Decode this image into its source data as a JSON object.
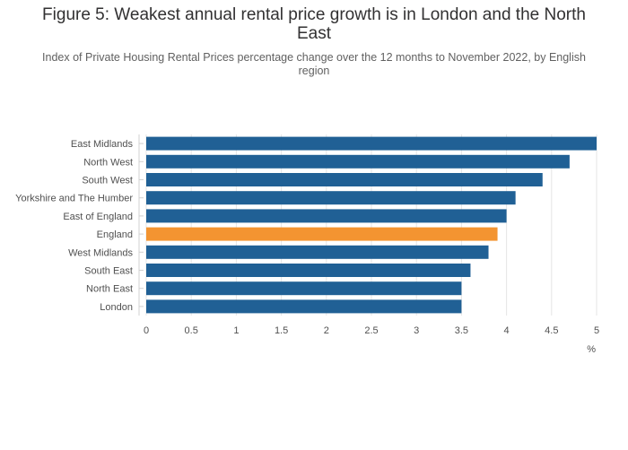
{
  "title": "Figure 5: Weakest annual rental price growth is in London and the North East",
  "subtitle": "Index of Private Housing Rental Prices percentage change over the 12 months to November 2022, by English region",
  "chart_data": {
    "type": "bar",
    "orientation": "horizontal",
    "categories": [
      "East Midlands",
      "North West",
      "South West",
      "Yorkshire and The Humber",
      "East of England",
      "England",
      "West Midlands",
      "South East",
      "North East",
      "London"
    ],
    "values": [
      5.0,
      4.7,
      4.4,
      4.1,
      4.0,
      3.9,
      3.8,
      3.6,
      3.5,
      3.5
    ],
    "highlight": "England",
    "colors": {
      "default": "#206095",
      "highlight": "#F39431"
    },
    "xlim": [
      0,
      5
    ],
    "xticks": [
      "0",
      "0.5",
      "1",
      "1.5",
      "2",
      "2.5",
      "3",
      "3.5",
      "4",
      "4.5",
      "5"
    ],
    "xlabel": "%",
    "ylabel": "",
    "grid": true
  }
}
